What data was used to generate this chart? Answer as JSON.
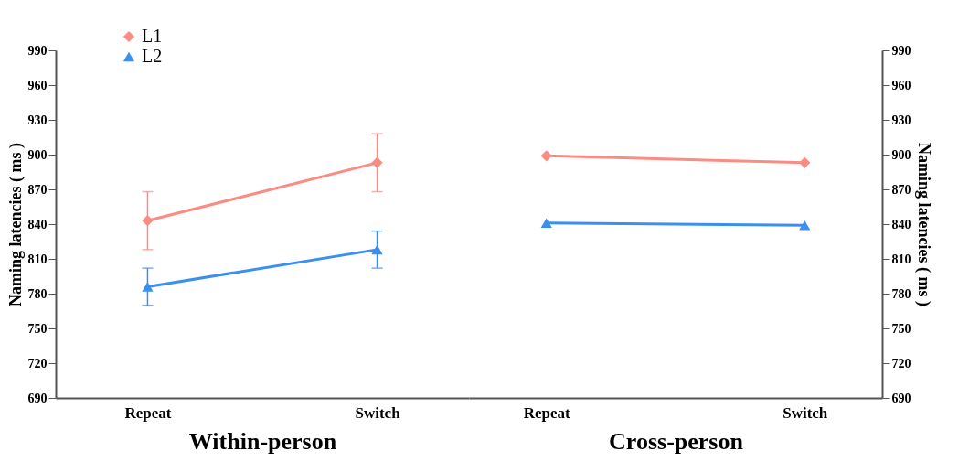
{
  "chart_data": [
    {
      "type": "line",
      "categories": [
        "Repeat",
        "Switch"
      ],
      "xlabel": "Within-person",
      "ylabel": "Naming latencies ( ms )",
      "ylim": [
        690,
        990
      ],
      "yticks": [
        690,
        720,
        750,
        780,
        810,
        840,
        870,
        900,
        930,
        960,
        990
      ],
      "grid": false,
      "legend": "top left",
      "series": [
        {
          "name": "L1",
          "color": "#fa8c84",
          "marker": "diamond",
          "values": [
            843,
            893
          ],
          "errors": [
            25,
            25
          ]
        },
        {
          "name": "L2",
          "color": "#3a8ff0",
          "marker": "triangle",
          "values": [
            786,
            818
          ],
          "errors": [
            16,
            16
          ]
        }
      ]
    },
    {
      "type": "line",
      "categories": [
        "Repeat",
        "Switch"
      ],
      "xlabel": "Cross-person",
      "y2label": "Naming latencies ( ms )",
      "y2lim": [
        690,
        990
      ],
      "y2ticks": [
        690,
        720,
        750,
        780,
        810,
        840,
        870,
        900,
        930,
        960,
        990
      ],
      "grid": false,
      "legend": false,
      "series": [
        {
          "color": "#fa8c84",
          "marker": "diamond",
          "axis": "y2",
          "values": [
            899,
            893
          ]
        },
        {
          "color": "#3a8ff0",
          "marker": "triangle",
          "axis": "y2",
          "values": [
            841,
            839
          ]
        }
      ]
    }
  ]
}
